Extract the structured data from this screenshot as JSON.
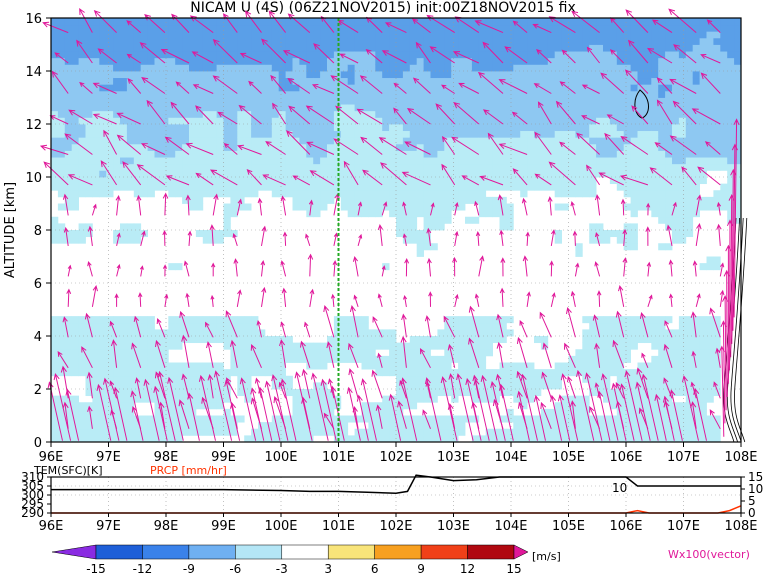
{
  "colors": {
    "shade_light": "#b9ecf6",
    "shade_mid": "#8ec8f2",
    "shade_dark": "#5a9fe8",
    "vector": "#e0189a",
    "marker_line": "#22aa22",
    "prcp": "#ff3300",
    "tem": "#000000"
  },
  "chart_data": [
    {
      "type": "heatmap",
      "title": "NICAM U (4S) (06Z21NOV2015) init:00Z18NOV2015 fix",
      "ylabel": "ALTITUDE [km]",
      "xlim": [
        96,
        108
      ],
      "ylim": [
        0,
        16
      ],
      "x_ticks": [
        "96E",
        "97E",
        "98E",
        "99E",
        "100E",
        "101E",
        "102E",
        "103E",
        "104E",
        "105E",
        "106E",
        "107E",
        "108E"
      ],
      "y_ticks": [
        "0",
        "2",
        "4",
        "6",
        "8",
        "10",
        "12",
        "14",
        "16"
      ],
      "grid": true,
      "vertical_marker_lon": 101,
      "u_field_description_levels": [
        -15,
        -12,
        -9,
        -6,
        -3,
        3,
        6,
        9,
        12,
        15
      ],
      "vector_label": "Wx100(vector)"
    },
    {
      "type": "line",
      "series": [
        {
          "name": "TEM(SFC)[K]",
          "x": [
            96,
            99,
            100,
            100.5,
            101,
            101.5,
            102,
            102.2,
            102.35,
            102.6,
            103,
            103.4,
            103.8,
            105,
            106,
            106.2,
            107,
            108
          ],
          "values": [
            303,
            303,
            302.5,
            302,
            302,
            301.5,
            301,
            302,
            311,
            310,
            308,
            308.5,
            310,
            310,
            310,
            305,
            305,
            305
          ]
        },
        {
          "name": "PRCP [mm/hr]",
          "x": [
            96,
            100,
            105,
            106,
            106.2,
            106.4,
            107.6,
            107.8,
            108
          ],
          "values": [
            0,
            0,
            0,
            0,
            1,
            0,
            0,
            1,
            3
          ]
        }
      ],
      "xlim": [
        96,
        108
      ],
      "left_ticks": [
        "310",
        "305",
        "300",
        "295",
        "290"
      ],
      "left_range": [
        290,
        310
      ],
      "right_ticks": [
        "15",
        "10",
        "5",
        "0"
      ],
      "right_range": [
        0,
        15
      ],
      "x_ticks": [
        "96E",
        "97E",
        "98E",
        "99E",
        "100E",
        "101E",
        "102E",
        "103E",
        "104E",
        "105E",
        "106E",
        "107E",
        "108E"
      ],
      "annotation": "10"
    },
    {
      "type": "colorbar",
      "levels": [
        "-15",
        "-12",
        "-9",
        "-6",
        "-3",
        "3",
        "6",
        "9",
        "12",
        "15"
      ],
      "unit": "[m/s]",
      "colors": [
        "#8a2be2",
        "#1e5fd8",
        "#3a82ea",
        "#6fb0f2",
        "#b4e6f6",
        "#ffffff",
        "#f8e47a",
        "#f7a020",
        "#f04018",
        "#b00810",
        "#e0189a"
      ]
    }
  ]
}
